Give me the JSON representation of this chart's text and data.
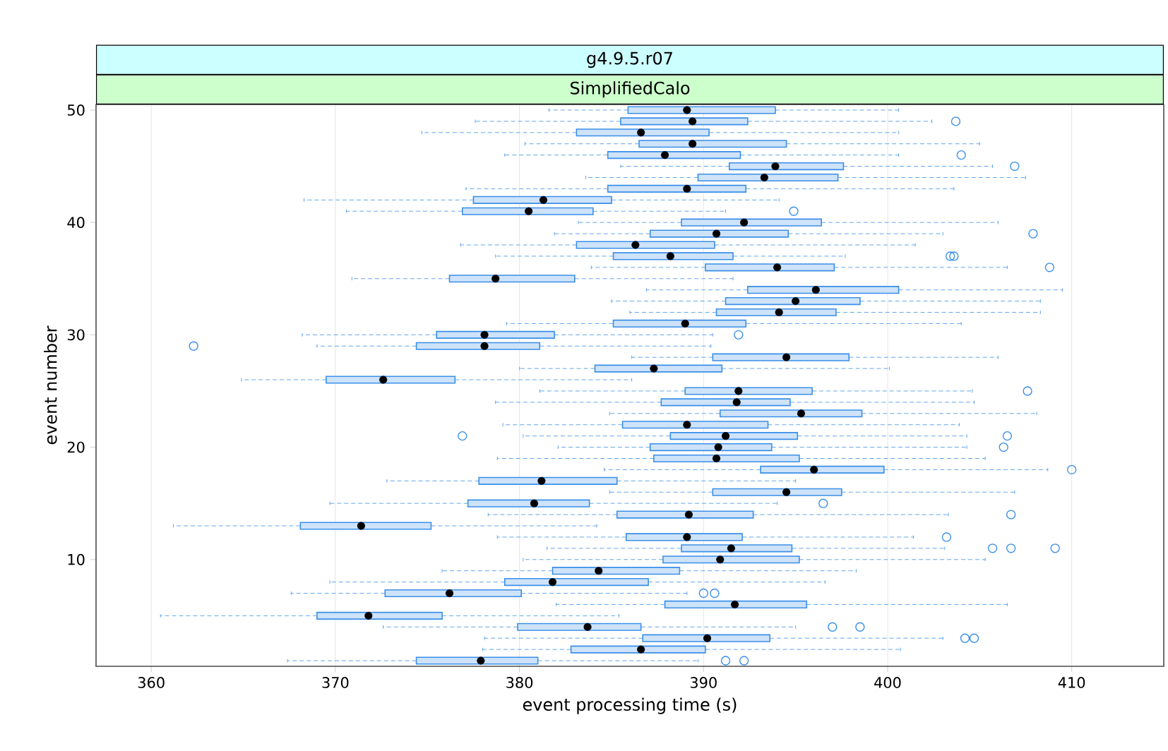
{
  "chart_data": {
    "type": "box",
    "orientation": "horizontal",
    "title": "g4.9.5.r07",
    "subtitle": "SimplifiedCalo",
    "xlabel": "event processing time (s)",
    "ylabel": "event number",
    "color": "#3a8fe8",
    "grid": "x",
    "xlim": [
      357,
      415
    ],
    "xticks": [
      360,
      370,
      380,
      390,
      400,
      410
    ],
    "ylim": [
      0.5,
      50.5
    ],
    "yticks": [
      10,
      20,
      30,
      40,
      50
    ],
    "x": [
      1,
      2,
      3,
      4,
      5,
      6,
      7,
      8,
      9,
      10,
      11,
      12,
      13,
      14,
      15,
      16,
      17,
      18,
      19,
      20,
      21,
      22,
      23,
      24,
      25,
      26,
      27,
      28,
      29,
      30,
      31,
      32,
      33,
      34,
      35,
      36,
      37,
      38,
      39,
      40,
      41,
      42,
      43,
      44,
      45,
      46,
      47,
      48,
      49,
      50
    ],
    "boxes": [
      {
        "low": 367.4,
        "q1": 374.4,
        "median": 377.9,
        "q3": 381.0,
        "high": 389.7,
        "outliers": [
          391.2,
          392.2
        ]
      },
      {
        "low": 378.0,
        "q1": 382.8,
        "median": 386.6,
        "q3": 390.1,
        "high": 400.7
      },
      {
        "low": 378.1,
        "q1": 386.7,
        "median": 390.2,
        "q3": 393.6,
        "high": 403.0,
        "outliers": [
          404.2,
          404.7
        ]
      },
      {
        "low": 372.6,
        "q1": 379.9,
        "median": 383.7,
        "q3": 386.6,
        "high": 395.0,
        "outliers": [
          397.0,
          398.5
        ]
      },
      {
        "low": 360.5,
        "q1": 369.0,
        "median": 371.8,
        "q3": 375.8,
        "high": 385.4
      },
      {
        "low": 382.0,
        "q1": 387.9,
        "median": 391.7,
        "q3": 395.6,
        "high": 406.5
      },
      {
        "low": 367.6,
        "q1": 372.7,
        "median": 376.2,
        "q3": 380.1,
        "high": 389.1,
        "outliers": [
          390.0,
          390.6
        ]
      },
      {
        "low": 369.7,
        "q1": 379.2,
        "median": 381.8,
        "q3": 387.0,
        "high": 396.6
      },
      {
        "low": 375.8,
        "q1": 381.8,
        "median": 384.3,
        "q3": 388.7,
        "high": 398.3
      },
      {
        "low": 380.2,
        "q1": 387.8,
        "median": 390.9,
        "q3": 395.2,
        "high": 405.3
      },
      {
        "low": 381.5,
        "q1": 388.8,
        "median": 391.5,
        "q3": 394.8,
        "high": 403.1,
        "outliers": [
          405.7,
          406.7,
          409.1
        ]
      },
      {
        "low": 378.8,
        "q1": 385.8,
        "median": 389.1,
        "q3": 392.1,
        "high": 401.4,
        "outliers": [
          403.2
        ]
      },
      {
        "low": 361.2,
        "q1": 368.1,
        "median": 371.4,
        "q3": 375.2,
        "high": 384.2
      },
      {
        "low": 378.3,
        "q1": 385.3,
        "median": 389.2,
        "q3": 392.7,
        "high": 403.3,
        "outliers": [
          406.7
        ]
      },
      {
        "low": 369.7,
        "q1": 377.2,
        "median": 380.8,
        "q3": 383.8,
        "high": 394.0,
        "outliers": [
          396.5
        ]
      },
      {
        "low": 384.9,
        "q1": 390.5,
        "median": 394.5,
        "q3": 397.5,
        "high": 406.9
      },
      {
        "low": 372.8,
        "q1": 377.8,
        "median": 381.2,
        "q3": 385.3,
        "high": 395.0
      },
      {
        "low": 384.6,
        "q1": 393.1,
        "median": 396.0,
        "q3": 399.8,
        "high": 408.7,
        "outliers": [
          410.0
        ]
      },
      {
        "low": 378.8,
        "q1": 387.3,
        "median": 390.7,
        "q3": 395.2,
        "high": 405.3
      },
      {
        "low": 382.1,
        "q1": 387.1,
        "median": 390.8,
        "q3": 393.7,
        "high": 404.3,
        "outliers": [
          406.3
        ]
      },
      {
        "low": 380.2,
        "q1": 388.2,
        "median": 391.2,
        "q3": 395.1,
        "high": 404.3,
        "outliers": [
          376.9,
          406.5
        ]
      },
      {
        "low": 379.1,
        "q1": 385.6,
        "median": 389.1,
        "q3": 393.5,
        "high": 403.9
      },
      {
        "low": 384.9,
        "q1": 390.9,
        "median": 395.3,
        "q3": 398.6,
        "high": 408.1
      },
      {
        "low": 378.7,
        "q1": 387.7,
        "median": 391.8,
        "q3": 394.7,
        "high": 404.7
      },
      {
        "low": 381.1,
        "q1": 389.0,
        "median": 391.9,
        "q3": 395.9,
        "high": 404.6,
        "outliers": [
          407.6
        ]
      },
      {
        "low": 364.9,
        "q1": 369.5,
        "median": 372.6,
        "q3": 376.5,
        "high": 386.1
      },
      {
        "low": 380.0,
        "q1": 384.1,
        "median": 387.3,
        "q3": 391.0,
        "high": 400.1
      },
      {
        "low": 386.1,
        "q1": 390.5,
        "median": 394.5,
        "q3": 397.9,
        "high": 406.0
      },
      {
        "low": 369.0,
        "q1": 374.4,
        "median": 378.1,
        "q3": 381.1,
        "high": 390.4,
        "outliers": [
          362.3
        ]
      },
      {
        "low": 368.2,
        "q1": 375.5,
        "median": 378.1,
        "q3": 381.9,
        "high": 390.5,
        "outliers": [
          391.9
        ]
      },
      {
        "low": 379.3,
        "q1": 385.1,
        "median": 389.0,
        "q3": 392.3,
        "high": 404.0
      },
      {
        "low": 386.0,
        "q1": 390.7,
        "median": 394.1,
        "q3": 397.2,
        "high": 408.3
      },
      {
        "low": 385.0,
        "q1": 391.2,
        "median": 395.0,
        "q3": 398.5,
        "high": 408.3
      },
      {
        "low": 386.9,
        "q1": 392.4,
        "median": 396.1,
        "q3": 400.6,
        "high": 409.5
      },
      {
        "low": 370.9,
        "q1": 376.2,
        "median": 378.7,
        "q3": 383.0,
        "high": 391.6
      },
      {
        "low": 383.9,
        "q1": 390.1,
        "median": 394.0,
        "q3": 397.1,
        "high": 406.5,
        "outliers": [
          408.8
        ]
      },
      {
        "low": 378.7,
        "q1": 385.1,
        "median": 388.2,
        "q3": 391.6,
        "high": 397.7,
        "outliers": [
          403.4,
          403.6
        ]
      },
      {
        "low": 376.8,
        "q1": 383.1,
        "median": 386.3,
        "q3": 390.6,
        "high": 401.5
      },
      {
        "low": 381.9,
        "q1": 387.1,
        "median": 390.7,
        "q3": 394.6,
        "high": 403.0,
        "outliers": [
          407.9
        ]
      },
      {
        "low": 383.2,
        "q1": 388.8,
        "median": 392.2,
        "q3": 396.4,
        "high": 406.0
      },
      {
        "low": 370.6,
        "q1": 376.9,
        "median": 380.5,
        "q3": 384.0,
        "high": 391.2,
        "outliers": [
          394.9
        ]
      },
      {
        "low": 368.3,
        "q1": 377.5,
        "median": 381.3,
        "q3": 385.0,
        "high": 394.1
      },
      {
        "low": 377.1,
        "q1": 384.8,
        "median": 389.1,
        "q3": 392.3,
        "high": 403.6
      },
      {
        "low": 383.6,
        "q1": 389.7,
        "median": 393.3,
        "q3": 397.3,
        "high": 407.5
      },
      {
        "low": 385.5,
        "q1": 391.4,
        "median": 393.9,
        "q3": 397.6,
        "high": 405.7,
        "outliers": [
          406.9
        ]
      },
      {
        "low": 379.2,
        "q1": 384.8,
        "median": 387.9,
        "q3": 392.0,
        "high": 400.6,
        "outliers": [
          404.0
        ]
      },
      {
        "low": 380.3,
        "q1": 386.5,
        "median": 389.4,
        "q3": 394.5,
        "high": 405.0
      },
      {
        "low": 374.7,
        "q1": 383.1,
        "median": 386.6,
        "q3": 390.3,
        "high": 400.6
      },
      {
        "low": 377.6,
        "q1": 385.5,
        "median": 389.4,
        "q3": 392.4,
        "high": 402.4,
        "outliers": [
          403.7
        ]
      },
      {
        "low": 381.6,
        "q1": 385.9,
        "median": 389.1,
        "q3": 393.9,
        "high": 400.6
      }
    ]
  }
}
